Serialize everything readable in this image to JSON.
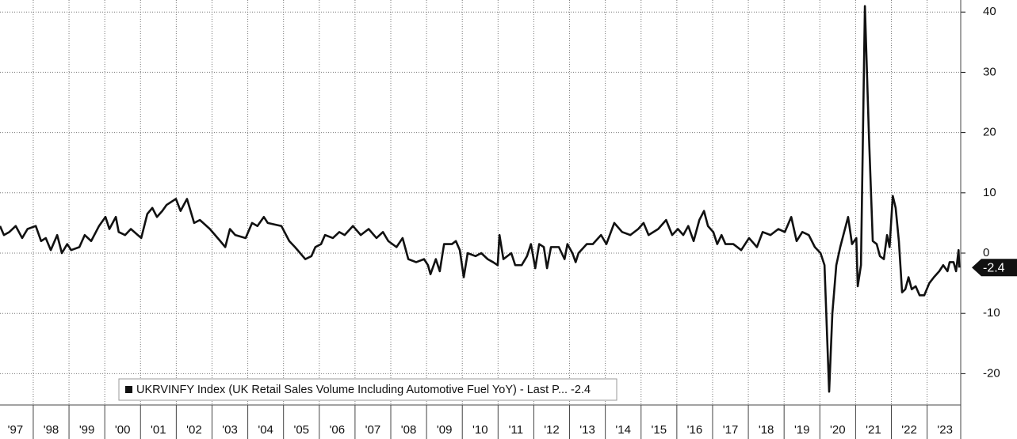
{
  "chart_data": {
    "type": "line",
    "x": [
      1997.07,
      1997.18,
      1997.33,
      1997.51,
      1997.69,
      1997.84,
      1998.07,
      1998.22,
      1998.35,
      1998.49,
      1998.67,
      1998.8,
      1998.95,
      1999.06,
      1999.29,
      1999.44,
      1999.62,
      1999.84,
      2000.02,
      2000.13,
      2000.31,
      2000.39,
      2000.57,
      2000.73,
      2001.02,
      2001.19,
      2001.33,
      2001.46,
      2001.61,
      2001.73,
      2001.99,
      2002.12,
      2002.3,
      2002.5,
      2002.66,
      2002.94,
      2003.23,
      2003.37,
      2003.5,
      2003.65,
      2003.94,
      2004.12,
      2004.27,
      2004.45,
      2004.56,
      2004.94,
      2005.16,
      2005.32,
      2005.61,
      2005.78,
      2005.89,
      2006.05,
      2006.16,
      2006.38,
      2006.56,
      2006.71,
      2006.94,
      2007.16,
      2007.38,
      2007.6,
      2007.78,
      2007.93,
      2008.16,
      2008.33,
      2008.49,
      2008.71,
      2008.93,
      2009.04,
      2009.11,
      2009.26,
      2009.37,
      2009.49,
      2009.71,
      2009.82,
      2009.93,
      2010.04,
      2010.15,
      2010.37,
      2010.53,
      2010.71,
      2010.86,
      2010.99,
      2011.04,
      2011.15,
      2011.37,
      2011.48,
      2011.66,
      2011.81,
      2011.92,
      2012.04,
      2012.15,
      2012.28,
      2012.37,
      2012.48,
      2012.7,
      2012.86,
      2012.94,
      2013.08,
      2013.17,
      2013.25,
      2013.48,
      2013.65,
      2013.88,
      2014.03,
      2014.25,
      2014.47,
      2014.7,
      2014.92,
      2015.07,
      2015.21,
      2015.48,
      2015.7,
      2015.87,
      2016.03,
      2016.18,
      2016.32,
      2016.47,
      2016.63,
      2016.76,
      2016.87,
      2017.02,
      2017.13,
      2017.25,
      2017.36,
      2017.58,
      2017.8,
      2018.02,
      2018.24,
      2018.4,
      2018.62,
      2018.84,
      2019.02,
      2019.2,
      2019.35,
      2019.51,
      2019.69,
      2019.86,
      2020.02,
      2020.13,
      2020.26,
      2020.35,
      2020.46,
      2020.57,
      2020.79,
      2020.9,
      2021.02,
      2021.06,
      2021.15,
      2021.26,
      2021.37,
      2021.48,
      2021.59,
      2021.68,
      2021.79,
      2021.88,
      2021.95,
      2022.04,
      2022.12,
      2022.21,
      2022.3,
      2022.39,
      2022.48,
      2022.57,
      2022.68,
      2022.79,
      2022.92,
      2023.06,
      2023.19,
      2023.34,
      2023.45,
      2023.57,
      2023.63,
      2023.74,
      2023.81,
      2023.88,
      2023.9
    ],
    "series": [
      {
        "name": "UKRVINFY Index (UK Retail Sales Volume Including Automotive Fuel YoY) - Last P...",
        "color": "#111111",
        "values": [
          4.5,
          3,
          3.5,
          4.5,
          2.5,
          4,
          4.5,
          2,
          2.5,
          0.5,
          3,
          0,
          1.5,
          0.5,
          1,
          3,
          2,
          4.5,
          6,
          4,
          6,
          3.5,
          3,
          4,
          2.5,
          6.5,
          7.5,
          6,
          7,
          8,
          9,
          7,
          9,
          5,
          5.5,
          4,
          2,
          1,
          4,
          3,
          2.5,
          5,
          4.5,
          6,
          5,
          4.5,
          2,
          1,
          -1,
          -0.5,
          1,
          1.5,
          3,
          2.5,
          3.5,
          3,
          4.5,
          3,
          4,
          2.5,
          3.5,
          2,
          1,
          2.5,
          -1,
          -1.5,
          -1,
          -2,
          -3.5,
          -1,
          -3,
          1.5,
          1.5,
          2,
          0.5,
          -4,
          0,
          -0.5,
          0,
          -1,
          -1.5,
          -2,
          3,
          -1,
          0,
          -2,
          -2,
          -0.5,
          1.5,
          -2.5,
          1.5,
          1,
          -2.5,
          1,
          1,
          -1,
          1.5,
          0,
          -1.5,
          0,
          1.5,
          1.5,
          3,
          1.5,
          5,
          3.5,
          3,
          4,
          5,
          3,
          4,
          5.5,
          3,
          4,
          3,
          4.5,
          2,
          5.5,
          7,
          4.5,
          3.5,
          1.5,
          3,
          1.5,
          1.5,
          0.5,
          2.5,
          1,
          3.5,
          3,
          4,
          3.5,
          6,
          2,
          3.5,
          3,
          1,
          0,
          -2,
          -23,
          -10,
          -2,
          1,
          6,
          1.5,
          2.5,
          -5.5,
          -2,
          41,
          20,
          2,
          1.5,
          -0.5,
          -1,
          3,
          1,
          9.5,
          7.5,
          2,
          -6.5,
          -6,
          -4,
          -6,
          -5.5,
          -7,
          -7,
          -5,
          -4,
          -3,
          -2,
          -3,
          -1.5,
          -1.5,
          -3,
          0.5,
          -2.4
        ]
      }
    ],
    "xlim": [
      1997.07,
      2023.94
    ],
    "xticks": [
      {
        "value": 1997,
        "label": "'97"
      },
      {
        "value": 1998,
        "label": "'98"
      },
      {
        "value": 1999,
        "label": "'99"
      },
      {
        "value": 2000,
        "label": "'00"
      },
      {
        "value": 2001,
        "label": "'01"
      },
      {
        "value": 2002,
        "label": "'02"
      },
      {
        "value": 2003,
        "label": "'03"
      },
      {
        "value": 2004,
        "label": "'04"
      },
      {
        "value": 2005,
        "label": "'05"
      },
      {
        "value": 2006,
        "label": "'06"
      },
      {
        "value": 2007,
        "label": "'07"
      },
      {
        "value": 2008,
        "label": "'08"
      },
      {
        "value": 2009,
        "label": "'09"
      },
      {
        "value": 2010,
        "label": "'10"
      },
      {
        "value": 2011,
        "label": "'11"
      },
      {
        "value": 2012,
        "label": "'12"
      },
      {
        "value": 2013,
        "label": "'13"
      },
      {
        "value": 2014,
        "label": "'14"
      },
      {
        "value": 2015,
        "label": "'15"
      },
      {
        "value": 2016,
        "label": "'16"
      },
      {
        "value": 2017,
        "label": "'17"
      },
      {
        "value": 2018,
        "label": "'18"
      },
      {
        "value": 2019,
        "label": "'19"
      },
      {
        "value": 2020,
        "label": "'20"
      },
      {
        "value": 2021,
        "label": "'21"
      },
      {
        "value": 2022,
        "label": "'22"
      },
      {
        "value": 2023,
        "label": "'23"
      }
    ],
    "ylim": [
      -25.2,
      42
    ],
    "yticks": [
      40,
      30,
      20,
      10,
      0,
      -10,
      -20
    ],
    "grid": true
  }
}
